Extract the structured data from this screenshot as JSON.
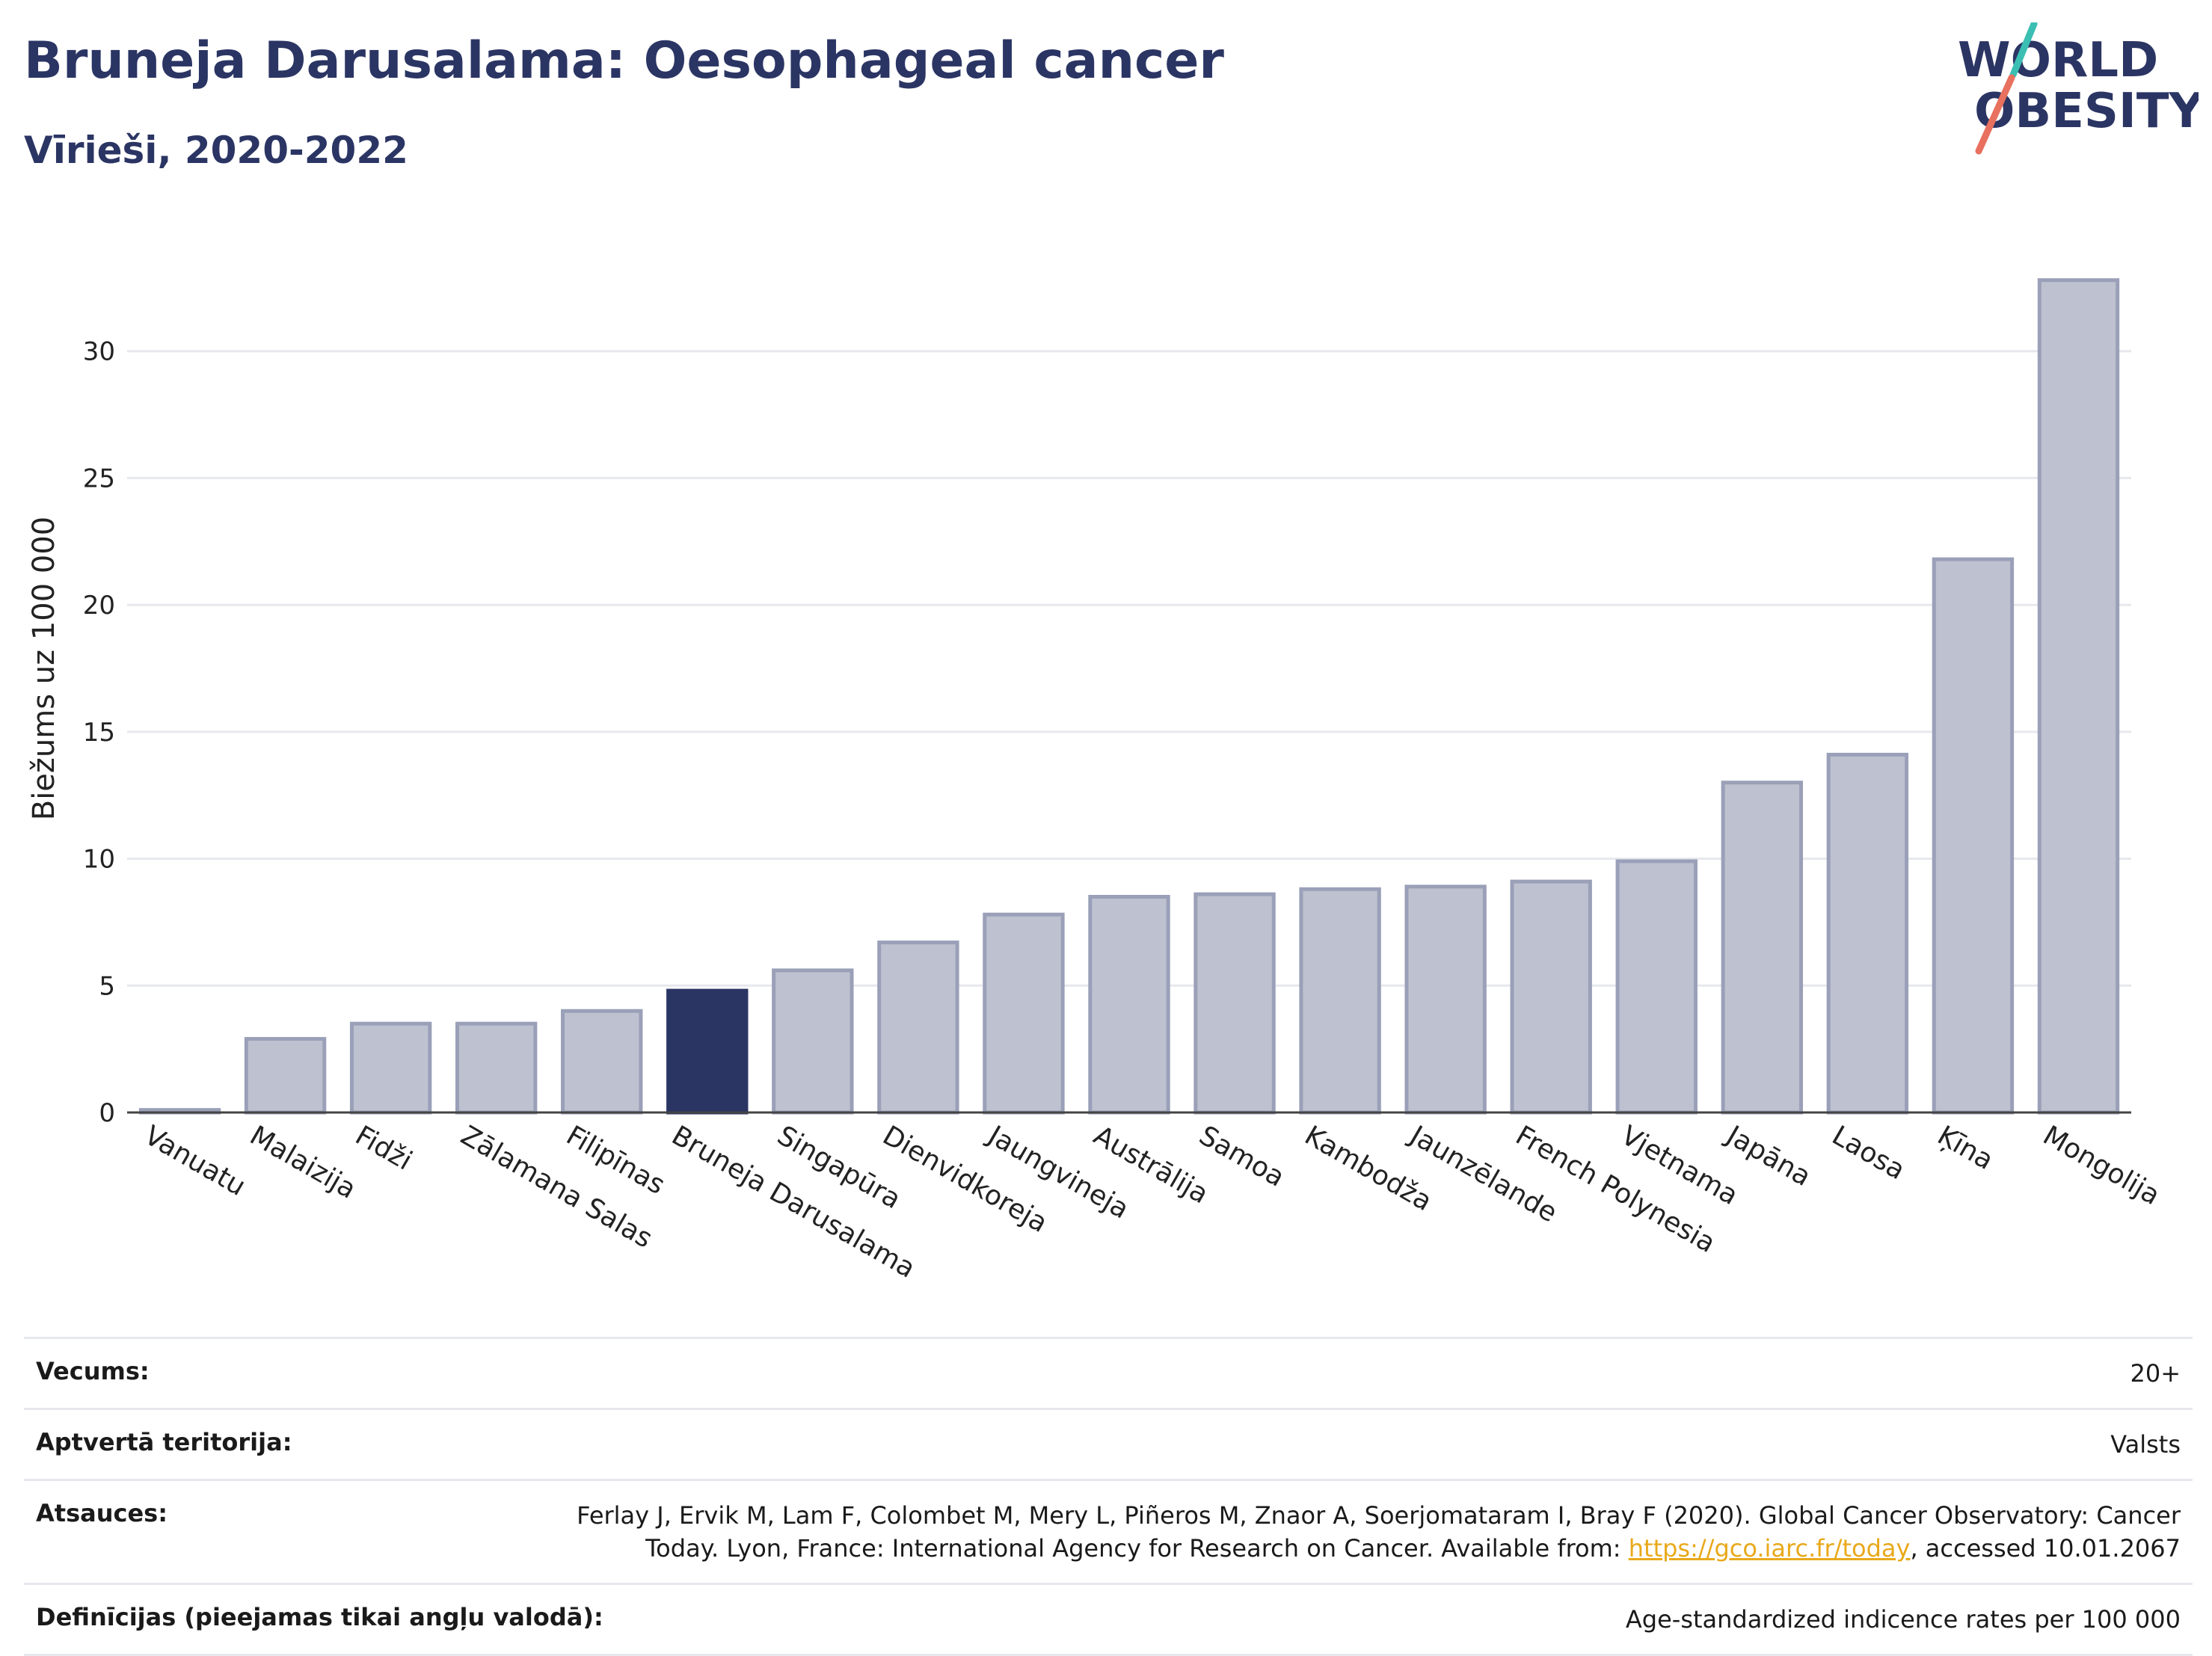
{
  "header": {
    "title": "Bruneja Darusalama: Oesophageal cancer",
    "subtitle": "Vīrieši, 2020-2022",
    "logo_line1": "WORLD",
    "logo_line2": "OBESITY"
  },
  "chart_data": {
    "type": "bar",
    "ylabel": "Biežums uz 100 000",
    "ylim": [
      0,
      35
    ],
    "yticks": [
      0,
      5,
      10,
      15,
      20,
      25,
      30
    ],
    "grid": true,
    "highlight": "Bruneja Darusalama",
    "categories": [
      "Vanuatu",
      "Malaizija",
      "Fidži",
      "Zālamana Salas",
      "Filipīnas",
      "Bruneja Darusalama",
      "Singapūra",
      "Dienvidkoreja",
      "Jaungvineja",
      "Austrālija",
      "Samoa",
      "Kambodža",
      "Jaunzēlande",
      "French Polynesia",
      "Vjetnama",
      "Japāna",
      "Laosa",
      "Ķīna",
      "Mongolija"
    ],
    "values": [
      0.1,
      2.9,
      3.5,
      3.5,
      4.0,
      4.8,
      5.6,
      6.7,
      7.8,
      8.5,
      8.6,
      8.8,
      8.9,
      9.1,
      9.9,
      13.0,
      14.1,
      21.8,
      32.8
    ],
    "colors": {
      "bar": "#bec1cf",
      "bar_edge": "#9aa0b8",
      "highlight": "#2b3564"
    }
  },
  "meta": {
    "rows": [
      {
        "key": "Vecums:",
        "value": "20+"
      },
      {
        "key": "Aptvertā teritorija:",
        "value": "Valsts"
      },
      {
        "key": "Atsauces:",
        "value_line1": "Ferlay J, Ervik M, Lam F, Colombet M, Mery L, Piñeros M, Znaor A, Soerjomataram I, Bray F (2020). Global Cancer Observatory: Cancer",
        "value_line2_pre": "Today. Lyon, France: International Agency for Research on Cancer. Available from: ",
        "value_link": "https://gco.iarc.fr/today",
        "value_line2_post": ", accessed 10.01.2067"
      },
      {
        "key": "Definīcijas (pieejamas tikai angļu valodā):",
        "value": "Age-standardized indicence rates per 100 000"
      }
    ]
  }
}
